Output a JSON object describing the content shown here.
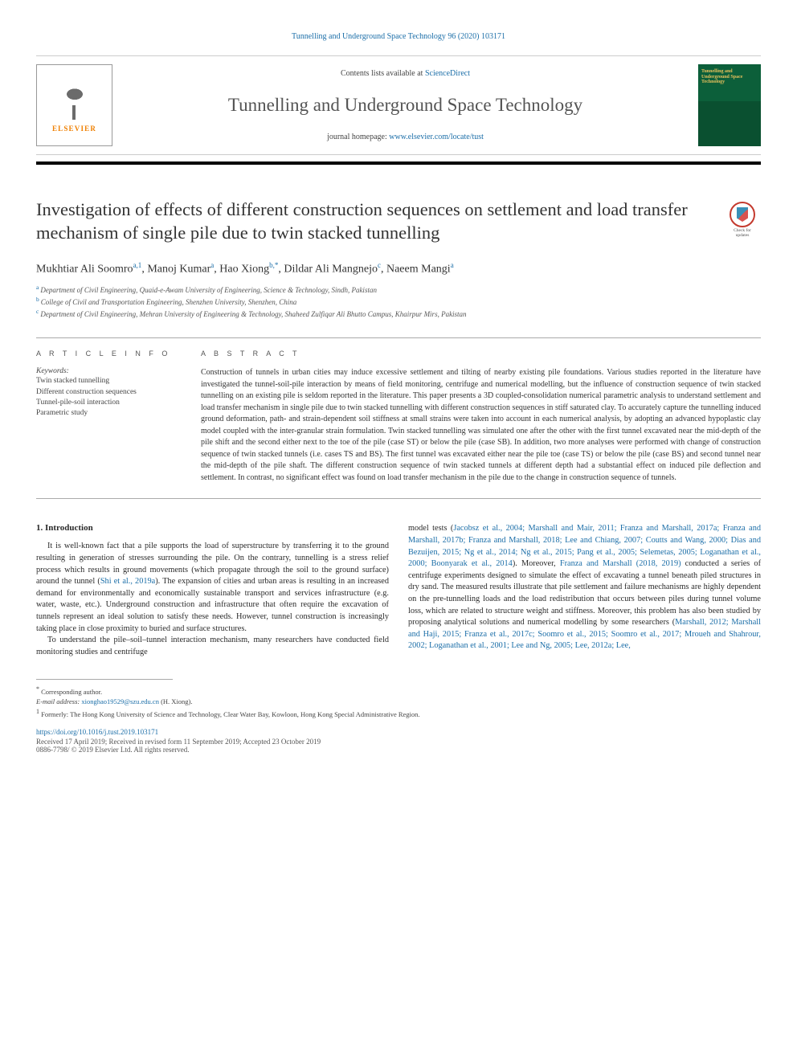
{
  "header": {
    "top_link": "Tunnelling and Underground Space Technology 96 (2020) 103171",
    "contents_prefix": "Contents lists available at ",
    "contents_link": "ScienceDirect",
    "journal_name": "Tunnelling and Underground Space Technology",
    "homepage_prefix": "journal homepage: ",
    "homepage_link": "www.elsevier.com/locate/tust",
    "elsevier_label": "ELSEVIER",
    "cover_title": "Tunnelling and Underground Space Technology"
  },
  "updates_badge": {
    "line1": "Check for",
    "line2": "updates"
  },
  "title": "Investigation of effects of different construction sequences on settlement and load transfer mechanism of single pile due to twin stacked tunnelling",
  "authors": [
    {
      "name": "Mukhtiar Ali Soomro",
      "sup": "a,1"
    },
    {
      "name": "Manoj Kumar",
      "sup": "a"
    },
    {
      "name": "Hao Xiong",
      "sup": "b,*"
    },
    {
      "name": "Dildar Ali Mangnejo",
      "sup": "c"
    },
    {
      "name": "Naeem Mangi",
      "sup": "a"
    }
  ],
  "affiliations": [
    {
      "sup": "a",
      "text": "Department of Civil Engineering, Quaid-e-Awam University of Engineering, Science & Technology, Sindh, Pakistan"
    },
    {
      "sup": "b",
      "text": "College of Civil and Transportation Engineering, Shenzhen University, Shenzhen, China"
    },
    {
      "sup": "c",
      "text": "Department of Civil Engineering, Mehran University of Engineering & Technology, Shaheed Zulfiqar Ali Bhutto Campus, Khairpur Mirs, Pakistan"
    }
  ],
  "info_heading": "A R T I C L E  I N F O",
  "abstract_heading": "A B S T R A C T",
  "keywords_label": "Keywords:",
  "keywords": [
    "Twin stacked tunnelling",
    "Different construction sequences",
    "Tunnel-pile-soil interaction",
    "Parametric study"
  ],
  "abstract": "Construction of tunnels in urban cities may induce excessive settlement and tilting of nearby existing pile foundations. Various studies reported in the literature have investigated the tunnel-soil-pile interaction by means of field monitoring, centrifuge and numerical modelling, but the influence of construction sequence of twin stacked tunnelling on an existing pile is seldom reported in the literature. This paper presents a 3D coupled-consolidation numerical parametric analysis to understand settlement and load transfer mechanism in single pile due to twin stacked tunnelling with different construction sequences in stiff saturated clay. To accurately capture the tunnelling induced ground deformation, path- and strain-dependent soil stiffness at small strains were taken into account in each numerical analysis, by adopting an advanced hypoplastic clay model coupled with the inter-granular strain formulation. Twin stacked tunnelling was simulated one after the other with the first tunnel excavated near the mid-depth of the pile shift and the second either next to the toe of the pile (case ST) or below the pile (case SB). In addition, two more analyses were performed with change of construction sequence of twin stacked tunnels (i.e. cases TS and BS). The first tunnel was excavated either near the pile toe (case TS) or below the pile (case BS) and second tunnel near the mid-depth of the pile shaft. The different construction sequence of twin stacked tunnels at different depth had a substantial effect on induced pile deflection and settlement. In contrast, no significant effect was found on load transfer mechanism in the pile due to the change in construction sequence of tunnels.",
  "intro_heading": "1. Introduction",
  "intro_p1_a": "It is well-known fact that a pile supports the load of superstructure by transferring it to the ground resulting in generation of stresses surrounding the pile. On the contrary, tunnelling is a stress relief process which results in ground movements (which propagate through the soil to the ground surface) around the tunnel (",
  "intro_p1_cite": "Shi et al., 2019a",
  "intro_p1_b": "). The expansion of cities and urban areas is resulting in an increased demand for environmentally and economically sustainable transport and services infrastructure (e.g. water, waste, etc.). Underground construction and infrastructure that often require the excavation of tunnels represent an ideal solution to satisfy these needs. However, tunnel construction is increasingly taking place in close proximity to buried and surface structures.",
  "intro_p2": "To understand the pile–soil–tunnel interaction mechanism, many researchers have conducted field monitoring studies and centrifuge",
  "col2_p1_a": "model tests (",
  "col2_p1_cite1": "Jacobsz et al., 2004; Marshall and Mair, 2011; Franza and Marshall, 2017a; Franza and Marshall, 2017b; Franza and Marshall, 2018; Lee and Chiang, 2007; Coutts and Wang, 2000; Dias and Bezuijen, 2015; Ng et al., 2014; Ng et al., 2015; Pang et al., 2005; Selemetas, 2005; Loganathan et al., 2000; Boonyarak et al., 2014",
  "col2_p1_b": "). Moreover, ",
  "col2_p1_cite2": "Franza and Marshall (2018, 2019)",
  "col2_p1_c": " conducted a series of centrifuge experiments designed to simulate the effect of excavating a tunnel beneath piled structures in dry sand. The measured results illustrate that pile settlement and failure mechanisms are highly dependent on the pre-tunnelling loads and the load redistribution that occurs between piles during tunnel volume loss, which are related to structure weight and stiffness. Moreover, this problem has also been studied by proposing analytical solutions and numerical modelling by some researchers (",
  "col2_p1_cite3": "Marshall, 2012; Marshall and Haji, 2015; Franza et al., 2017c; Soomro et al., 2015; Soomro et al., 2017; Mroueh and Shahrour, 2002; Loganathan et al., 2001; Lee and Ng, 2005; Lee, 2012a; Lee,",
  "footer": {
    "corresponding": "Corresponding author.",
    "email_label": "E-mail address: ",
    "email": "xionghao19529@szu.edu.cn",
    "email_suffix": " (H. Xiong).",
    "note1": "Formerly: The Hong Kong University of Science and Technology, Clear Water Bay, Kowloon, Hong Kong Special Administrative Region.",
    "doi": "https://doi.org/10.1016/j.tust.2019.103171",
    "received": "Received 17 April 2019; Received in revised form 11 September 2019; Accepted 23 October 2019",
    "copyright": "0886-7798/ © 2019 Elsevier Ltd. All rights reserved."
  },
  "colors": {
    "link": "#1b6ea8",
    "elsevier_orange": "#ef7f00",
    "cover_green": "#0c5f3a",
    "badge_red": "#c43a2e",
    "text": "#2a2a2a"
  }
}
